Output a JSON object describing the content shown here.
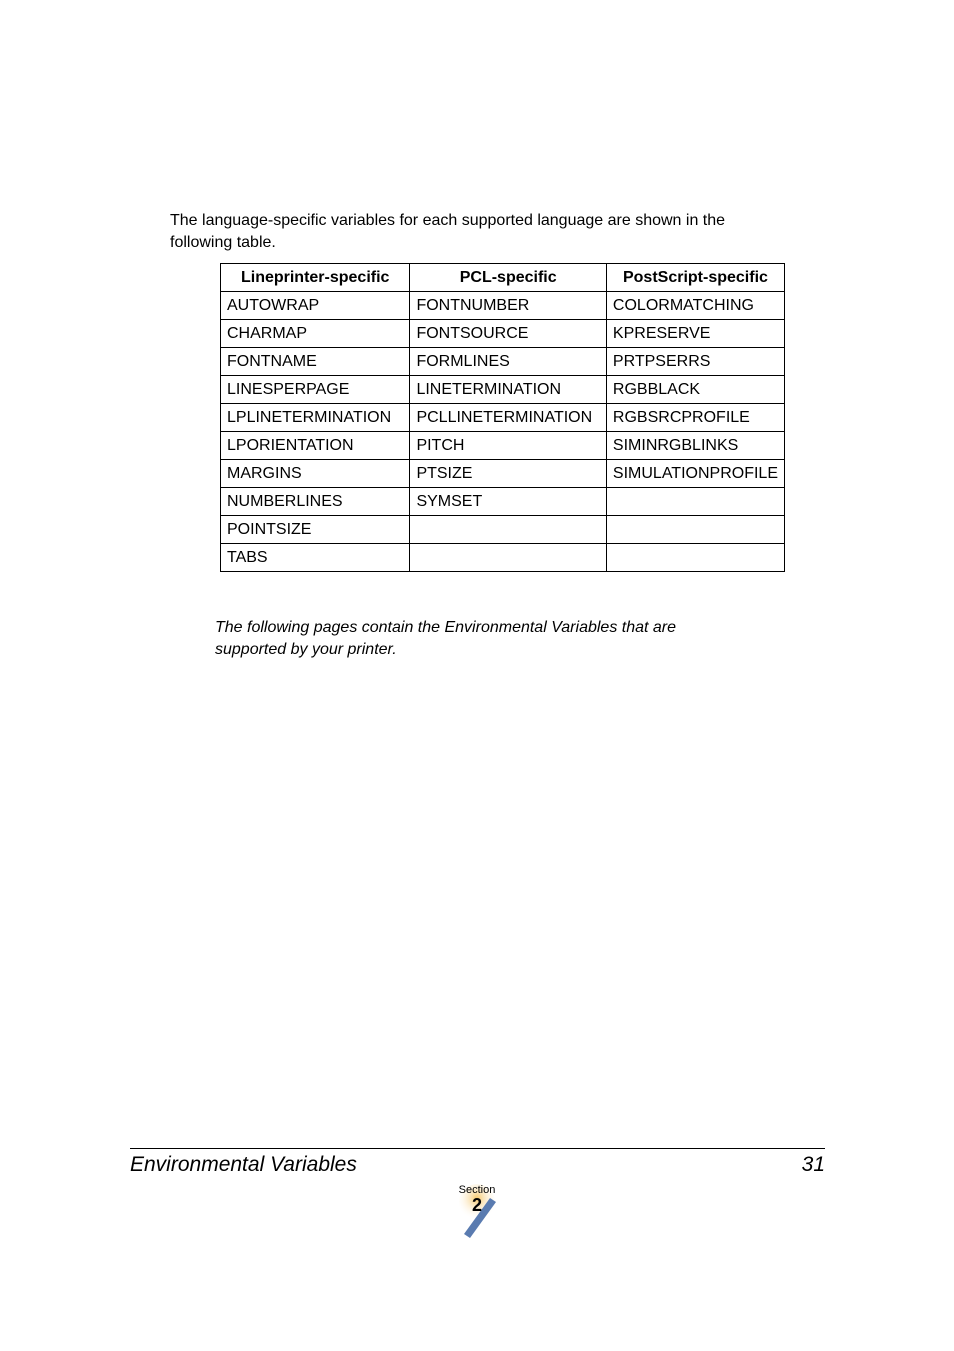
{
  "intro": "The language-specific variables for each supported language are shown in the following table.",
  "table": {
    "headers": [
      "Lineprinter-specific",
      "PCL-specific",
      "PostScript-specific"
    ],
    "rows": [
      [
        "AUTOWRAP",
        "FONTNUMBER",
        "COLORMATCHING"
      ],
      [
        "CHARMAP",
        "FONTSOURCE",
        "KPRESERVE"
      ],
      [
        "FONTNAME",
        "FORMLINES",
        "PRTPSERRS"
      ],
      [
        "LINESPERPAGE",
        "LINETERMINATION",
        "RGBBLACK"
      ],
      [
        "LPLINETERMINATION",
        "PCLLINETERMINATION",
        "RGBSRCPROFILE"
      ],
      [
        "LPORIENTATION",
        "PITCH",
        "SIMINRGBLINKS"
      ],
      [
        "MARGINS",
        "PTSIZE",
        "SIMULATIONPROFILE"
      ],
      [
        "NUMBERLINES",
        "SYMSET",
        ""
      ],
      [
        "POINTSIZE",
        "",
        ""
      ],
      [
        "TABS",
        "",
        ""
      ]
    ]
  },
  "note": "The following pages contain the Environmental Variables that are supported by your printer.",
  "footer": {
    "title": "Environmental Variables",
    "page": "31"
  },
  "section": {
    "label": "Section",
    "number": "2",
    "circle_fill": "#f6c76a",
    "slash_fill": "#5a7bb0"
  }
}
